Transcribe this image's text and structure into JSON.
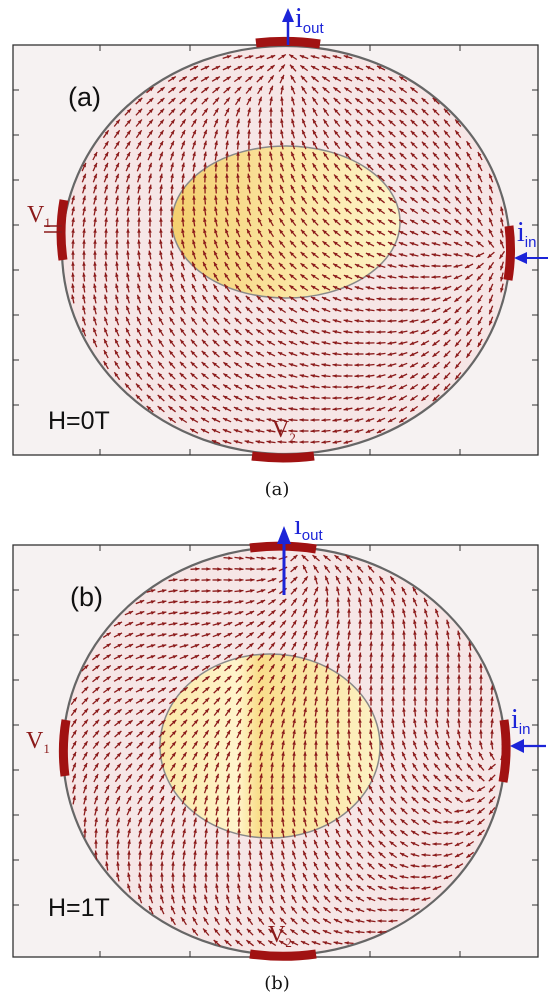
{
  "colors": {
    "arrow": "#8b1a1a",
    "contact": "#a11212",
    "current": "#1c24d8",
    "frame_bg": "#f6f2f2",
    "ring": "#777777",
    "inclusion_light": "#fdf4c8",
    "inclusion_dark": "#f4cf6f"
  },
  "panels": [
    {
      "id": "a",
      "panel_label": "(a)",
      "field_label": "H=0T",
      "current_out_base": "i",
      "current_out_sub": "out",
      "current_in_base": "i",
      "current_in_sub": "in",
      "v1_base": "V",
      "v1_sub": "1",
      "v2_base": "V",
      "v2_sub": "2",
      "caption": "(a)"
    },
    {
      "id": "b",
      "panel_label": "(b)",
      "field_label": "H=1T",
      "current_out_base": "i",
      "current_out_sub": "out",
      "current_in_base": "i",
      "current_in_sub": "in",
      "v1_base": "V",
      "v1_sub": "1",
      "v2_base": "V",
      "v2_sub": "2",
      "caption": "(b)"
    }
  ]
}
